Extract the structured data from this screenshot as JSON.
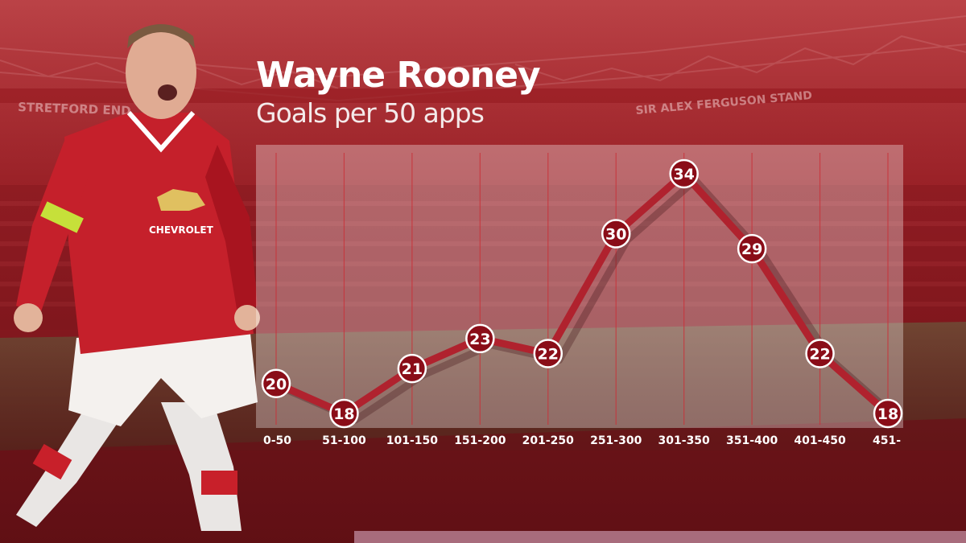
{
  "header": {
    "title": "Wayne Rooney",
    "subtitle": "Goals per 50 apps"
  },
  "stadium_signs": {
    "left": "STRETFORD END",
    "right": "SIR ALEX FERGUSON STAND"
  },
  "chart_data": {
    "type": "line",
    "title": "Wayne Rooney",
    "subtitle": "Goals per 50 apps",
    "categories": [
      "0-50",
      "51-100",
      "101-150",
      "151-200",
      "201-250",
      "251-300",
      "301-350",
      "351-400",
      "401-450",
      "451-"
    ],
    "values": [
      20,
      18,
      21,
      23,
      22,
      30,
      34,
      29,
      22,
      18
    ],
    "ylim": [
      15,
      36
    ],
    "grid": "vertical",
    "legend": "none"
  },
  "colors": {
    "line": "#b0222e",
    "marker": "#8a0d18",
    "marker_border": "#ffffff",
    "panel": "#ffffff",
    "accent": "#c8323a"
  }
}
